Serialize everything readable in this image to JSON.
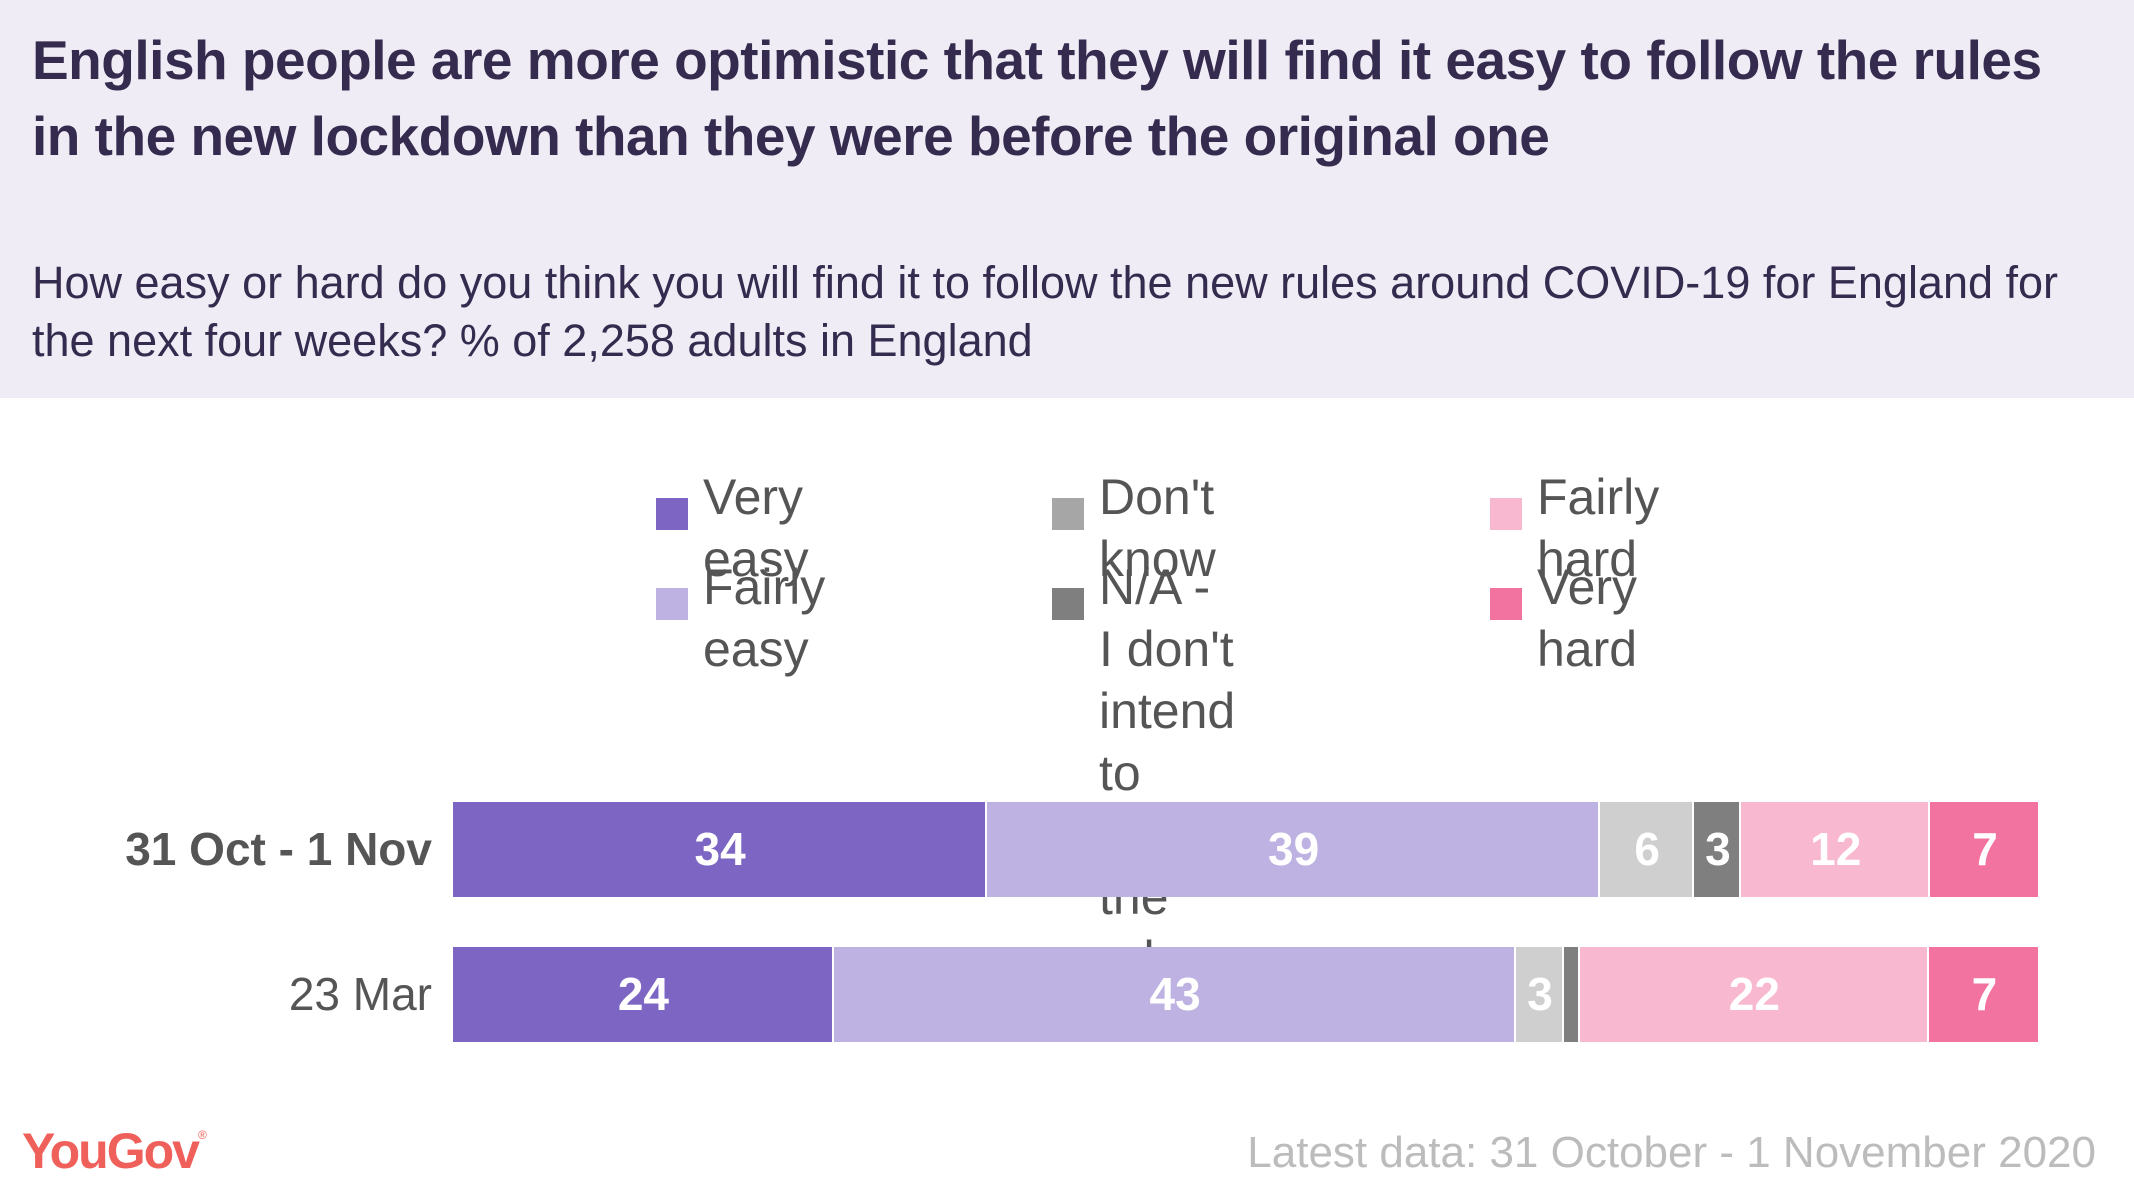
{
  "header": {
    "title": "English people are more optimistic that they will find it easy to follow the rules in the new lockdown than they were before the original one",
    "subtitle": "How easy or hard do you think you will find it to follow the new rules around COVID-19 for England for the next four weeks? % of 2,258 adults in England"
  },
  "legend": [
    {
      "label": "Very easy",
      "color": "#7d66c3"
    },
    {
      "label": "Fairly easy",
      "color": "#bdb2e1"
    },
    {
      "label": "Don't know",
      "color": "#a6a6a6"
    },
    {
      "label": "N/A - I don't\nintend to\nfollow the rules",
      "color": "#7f7f7f"
    },
    {
      "label": "Fairly hard",
      "color": "#f8b9d0"
    },
    {
      "label": "Very hard",
      "color": "#f272a0"
    }
  ],
  "chart_data": {
    "type": "bar",
    "orientation": "horizontal",
    "stacked": true,
    "title": "English people are more optimistic that they will find it easy to follow the rules in the new lockdown than they were before the original one",
    "subtitle": "How easy or hard do you think you will find it to follow the new rules around COVID-19 for England for the next four weeks? % of 2,258 adults in England",
    "xlabel": "",
    "ylabel": "",
    "categories": [
      "31 Oct - 1 Nov",
      "23 Mar"
    ],
    "category_bold": [
      true,
      false
    ],
    "series": [
      {
        "name": "Very easy",
        "color": "#7d66c3",
        "bar_color": "#7d66c3",
        "values": [
          34,
          24
        ],
        "labels": [
          "34",
          "24"
        ]
      },
      {
        "name": "Fairly easy",
        "color": "#bdb2e1",
        "bar_color": "#bdb2e1",
        "values": [
          39,
          43
        ],
        "labels": [
          "39",
          "43"
        ]
      },
      {
        "name": "Don't know",
        "color": "#a6a6a6",
        "bar_color": "#cfcfcf",
        "values": [
          6,
          3
        ],
        "labels": [
          "6",
          "3"
        ]
      },
      {
        "name": "N/A - I don't intend to follow the rules",
        "color": "#7f7f7f",
        "bar_color": "#7f7f7f",
        "values": [
          3,
          1
        ],
        "labels": [
          "3",
          ""
        ]
      },
      {
        "name": "Fairly hard",
        "color": "#f8b9d0",
        "bar_color": "#f8b9d0",
        "values": [
          12,
          22
        ],
        "labels": [
          "12",
          "22"
        ]
      },
      {
        "name": "Very hard",
        "color": "#f272a0",
        "bar_color": "#f272a0",
        "values": [
          7,
          7
        ],
        "labels": [
          "7",
          "7"
        ]
      }
    ],
    "legend_position": "top",
    "grid": false
  },
  "footer": {
    "logo": "YouGov",
    "logo_mark": "®",
    "note": "Latest data: 31 October - 1 November 2020"
  }
}
